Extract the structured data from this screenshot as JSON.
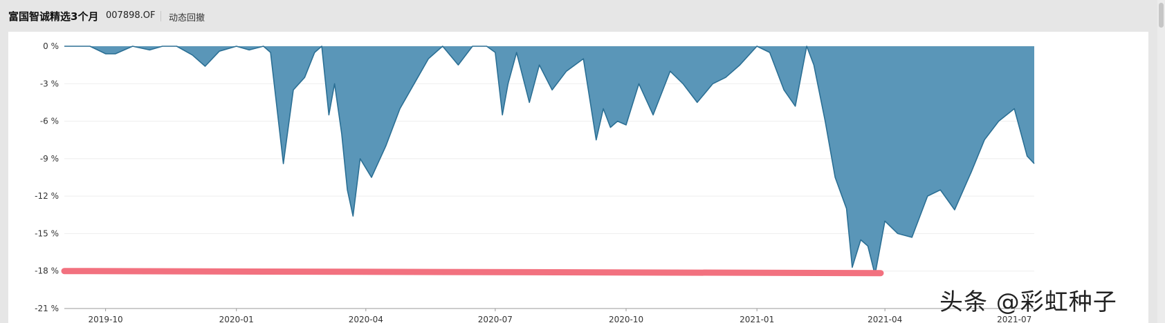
{
  "header": {
    "fund_name": "富国智诚精选3个月",
    "fund_code": "007898.OF",
    "tab_label": "动态回撤"
  },
  "watermark": "头条 @彩虹种子",
  "colors": {
    "area_fill": "#5a96b8",
    "area_stroke": "#2b6f94",
    "highlight": "#f2717f",
    "grid": "#eeeeee"
  },
  "chart_data": {
    "type": "area",
    "title": "动态回撤",
    "xlabel": "",
    "ylabel": "",
    "ylim": [
      -21,
      0
    ],
    "yticks": [
      0,
      -3,
      -6,
      -9,
      -12,
      -15,
      -18,
      -21
    ],
    "ytick_labels": [
      "0 %",
      "-3 %",
      "-6 %",
      "-9 %",
      "-12 %",
      "-15 %",
      "-18 %",
      "-21 %"
    ],
    "xticks": [
      "2019-10",
      "2020-01",
      "2020-04",
      "2020-07",
      "2020-10",
      "2021-01",
      "2021-04",
      "2021-07"
    ],
    "x_range": [
      "2019-09-02",
      "2021-07-15"
    ],
    "series": [
      {
        "x": [
          "2019-09-02",
          "2019-09-20",
          "2019-10-01",
          "2019-10-08",
          "2019-10-20",
          "2019-11-01",
          "2019-11-10",
          "2019-11-20",
          "2019-12-01",
          "2019-12-10",
          "2019-12-20",
          "2020-01-01",
          "2020-01-10",
          "2020-01-20",
          "2020-01-25",
          "2020-02-03",
          "2020-02-10",
          "2020-02-18",
          "2020-02-25",
          "2020-03-01",
          "2020-03-06",
          "2020-03-10",
          "2020-03-15",
          "2020-03-19",
          "2020-03-23",
          "2020-03-28",
          "2020-04-05",
          "2020-04-15",
          "2020-04-25",
          "2020-05-05",
          "2020-05-15",
          "2020-05-25",
          "2020-06-05",
          "2020-06-15",
          "2020-06-25",
          "2020-07-01",
          "2020-07-06",
          "2020-07-10",
          "2020-07-16",
          "2020-07-25",
          "2020-08-01",
          "2020-08-10",
          "2020-08-20",
          "2020-09-01",
          "2020-09-10",
          "2020-09-15",
          "2020-09-20",
          "2020-09-25",
          "2020-10-01",
          "2020-10-10",
          "2020-10-20",
          "2020-11-01",
          "2020-11-10",
          "2020-11-20",
          "2020-12-01",
          "2020-12-10",
          "2020-12-20",
          "2021-01-01",
          "2021-01-10",
          "2021-01-20",
          "2021-01-28",
          "2021-02-05",
          "2021-02-10",
          "2021-02-18",
          "2021-02-25",
          "2021-03-05",
          "2021-03-09",
          "2021-03-15",
          "2021-03-20",
          "2021-03-25",
          "2021-04-01",
          "2021-04-10",
          "2021-04-20",
          "2021-05-01",
          "2021-05-10",
          "2021-05-20",
          "2021-06-01",
          "2021-06-10",
          "2021-06-20",
          "2021-07-01",
          "2021-07-10",
          "2021-07-15"
        ],
        "y": [
          0,
          0,
          -0.6,
          -0.6,
          0,
          -0.3,
          0,
          0,
          -0.7,
          -1.6,
          -0.4,
          0,
          -0.3,
          0,
          -0.5,
          -9.4,
          -3.5,
          -2.5,
          -0.5,
          0,
          -5.5,
          -3,
          -7,
          -11.5,
          -13.6,
          -9,
          -10.5,
          -8,
          -5,
          -3,
          -1,
          0,
          -1.5,
          0,
          0,
          -0.5,
          -5.5,
          -3,
          -0.5,
          -4.5,
          -1.5,
          -3.5,
          -2,
          -1,
          -7.5,
          -5,
          -6.5,
          -6,
          -6.3,
          -3,
          -5.5,
          -2,
          -3,
          -4.5,
          -3,
          -2.5,
          -1.5,
          0,
          -0.5,
          -3.5,
          -4.8,
          0,
          -1.5,
          -6,
          -10.5,
          -13,
          -17.7,
          -15.5,
          -16,
          -18.3,
          -14,
          -15,
          -15.3,
          -12,
          -11.5,
          -13.1,
          -10,
          -7.5,
          -6,
          -5,
          -8.8,
          -9.4
        ]
      }
    ],
    "annotations": [
      {
        "type": "highlight-line",
        "y": -18,
        "x_start": "2019-09-02",
        "x_end": "2021-03-29"
      }
    ]
  }
}
